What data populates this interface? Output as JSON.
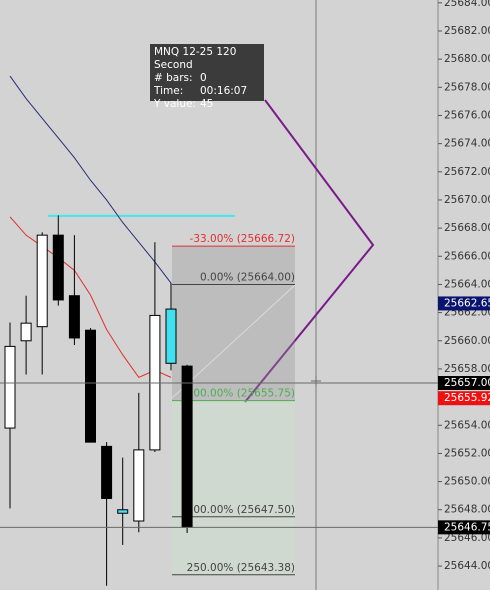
{
  "chart_data": {
    "type": "candlestick",
    "ylim": [
      25642.3,
      25684.2
    ],
    "yticks": [
      {
        "value": 25644,
        "label": "25644.00"
      },
      {
        "value": 25646,
        "label": "25646.00"
      },
      {
        "value": 25648,
        "label": "25648.00"
      },
      {
        "value": 25650,
        "label": "25650.00"
      },
      {
        "value": 25652,
        "label": "25652.00"
      },
      {
        "value": 25654,
        "label": "25654.00"
      },
      {
        "value": 25656,
        "label": "25656.00"
      },
      {
        "value": 25658,
        "label": "25658.00"
      },
      {
        "value": 25660,
        "label": "25660.00"
      },
      {
        "value": 25662,
        "label": "25662.00"
      },
      {
        "value": 25664,
        "label": "25664.00"
      },
      {
        "value": 25666,
        "label": "25666.00"
      },
      {
        "value": 25668,
        "label": "25668.00"
      },
      {
        "value": 25670,
        "label": "25670.00"
      },
      {
        "value": 25672,
        "label": "25672.00"
      },
      {
        "value": 25674,
        "label": "25674.00"
      },
      {
        "value": 25676,
        "label": "25676.00"
      },
      {
        "value": 25678,
        "label": "25678.00"
      },
      {
        "value": 25680,
        "label": "25680.00"
      },
      {
        "value": 25682,
        "label": "25682.00"
      },
      {
        "value": 25684,
        "label": "25684.00"
      }
    ],
    "grid": false,
    "open": [
      25653.8,
      25660.0,
      25661.0,
      25667.5,
      25663.2,
      25660.75,
      25652.5,
      25647.75,
      25647.2,
      25652.25,
      25658.4,
      25658.2
    ],
    "high": [
      25661.3,
      25663.2,
      25667.7,
      25668.9,
      25667.5,
      25660.9,
      25652.8,
      25651.7,
      25656.3,
      25667.0,
      25664.1,
      25658.3
    ],
    "low": [
      25648.1,
      25657.6,
      25657.6,
      25662.5,
      25659.7,
      25652.8,
      25642.6,
      25645.5,
      25646.4,
      25652.1,
      25657.9,
      25646.35
    ],
    "close": [
      25659.6,
      25661.25,
      25667.5,
      25662.9,
      25660.2,
      25652.8,
      25648.8,
      25648.0,
      25652.25,
      25661.8,
      25662.25,
      25646.75
    ],
    "candle_colors": [
      "#ffffff",
      "#ffffff",
      "#ffffff",
      "#000000",
      "#000000",
      "#000000",
      "#000000",
      "#40e0f0",
      "#ffffff",
      "#ffffff",
      "#40e0f0",
      "#000000"
    ],
    "series": [
      {
        "color": "#2b2b78",
        "values": [
          25678.8,
          25677.2,
          25675.8,
          25674.4,
          25673.0,
          25671.4,
          25670.0,
          25668.4,
          25667.0,
          25665.6,
          25664.1,
          null
        ]
      },
      {
        "color": "#e0302a",
        "values": [
          25668.8,
          25667.5,
          25666.7,
          25665.9,
          25665.0,
          25663.25,
          25660.8,
          25659.0,
          25657.4,
          25657.9,
          25657.4,
          null
        ]
      }
    ],
    "horizontal_line": {
      "value": 25668.87,
      "color": "#40e8f0"
    },
    "fib_levels": [
      {
        "value": 25666.72,
        "label": "-33.00% (25666.72)",
        "color": "#e03030"
      },
      {
        "value": 25664.0,
        "label": "0.00% (25664.00)",
        "color": "#444444"
      },
      {
        "value": 25655.75,
        "label": "100.00% (25655.75)",
        "color": "#4caf50"
      },
      {
        "value": 25647.5,
        "label": "200.00% (25647.50)",
        "color": "#444444"
      },
      {
        "value": 25643.38,
        "label": "250.00% (25643.38)",
        "color": "#444444"
      }
    ],
    "price_markers": [
      {
        "value": 25662.65,
        "color": "#0a1470"
      },
      {
        "value": 25657,
        "label": "25657.00",
        "color": "#000000"
      },
      {
        "value": 25655.92,
        "color": "#ee1111"
      },
      {
        "value": 25646.75,
        "color": "#000000"
      }
    ]
  },
  "tooltip": {
    "title": "MNQ 12-25 120 Second",
    "rows": [
      {
        "label": "# bars:",
        "value": 0
      },
      {
        "label": "Time:",
        "value": "00:16:07"
      },
      {
        "label": "Y value:",
        "value": 45
      }
    ]
  }
}
